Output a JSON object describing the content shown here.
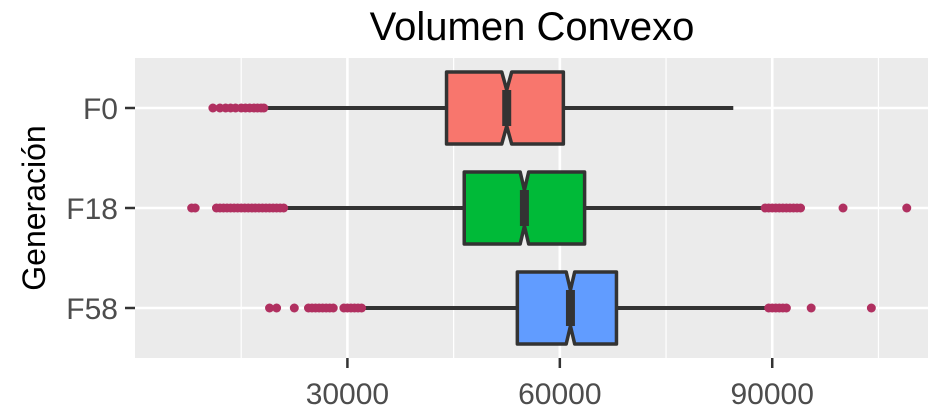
{
  "chart_data": {
    "type": "boxplot",
    "orientation": "horizontal",
    "title": "Volumen Convexo",
    "xlabel": "",
    "ylabel": "Generación",
    "xlim": [
      0,
      112000
    ],
    "xticks": [
      30000,
      60000,
      90000
    ],
    "x_tick_labels": [
      "30000",
      "60000",
      "90000"
    ],
    "grid": true,
    "legend": "none",
    "categories": [
      "F0",
      "F18",
      "F58"
    ],
    "series": [
      {
        "category": "F0",
        "color": "#F8766D",
        "min": 18500,
        "q1": 44000,
        "median": 52500,
        "q3": 60500,
        "max": 84500,
        "notch_low": 51800,
        "notch_high": 53200,
        "outliers": [
          11000,
          12000,
          12800,
          13500,
          14200,
          15000,
          15600,
          16200,
          16800,
          17300,
          17800,
          18200
        ]
      },
      {
        "category": "F18",
        "color": "#00BA38",
        "min": 21500,
        "q1": 46500,
        "median": 55000,
        "q3": 63500,
        "max": 88500,
        "notch_low": 54400,
        "notch_high": 55600,
        "outliers": [
          8000,
          8500,
          11500,
          12000,
          12500,
          13000,
          13500,
          14000,
          14500,
          15000,
          15500,
          16000,
          16500,
          17000,
          17500,
          18000,
          18500,
          19000,
          19500,
          20000,
          20500,
          21000,
          89000,
          89500,
          90000,
          90500,
          91000,
          91500,
          92000,
          92500,
          93000,
          93500,
          94000,
          100000,
          109000
        ]
      },
      {
        "category": "F58",
        "color": "#619CFF",
        "min": 32500,
        "q1": 54000,
        "median": 61500,
        "q3": 68000,
        "max": 89000,
        "notch_low": 60900,
        "notch_high": 62100,
        "outliers": [
          19000,
          20000,
          22500,
          24500,
          25000,
          25500,
          26000,
          26500,
          27000,
          27500,
          28000,
          29500,
          30000,
          30500,
          31000,
          31500,
          32000,
          89500,
          90000,
          90500,
          91000,
          91500,
          92000,
          95500,
          104000
        ]
      }
    ]
  }
}
